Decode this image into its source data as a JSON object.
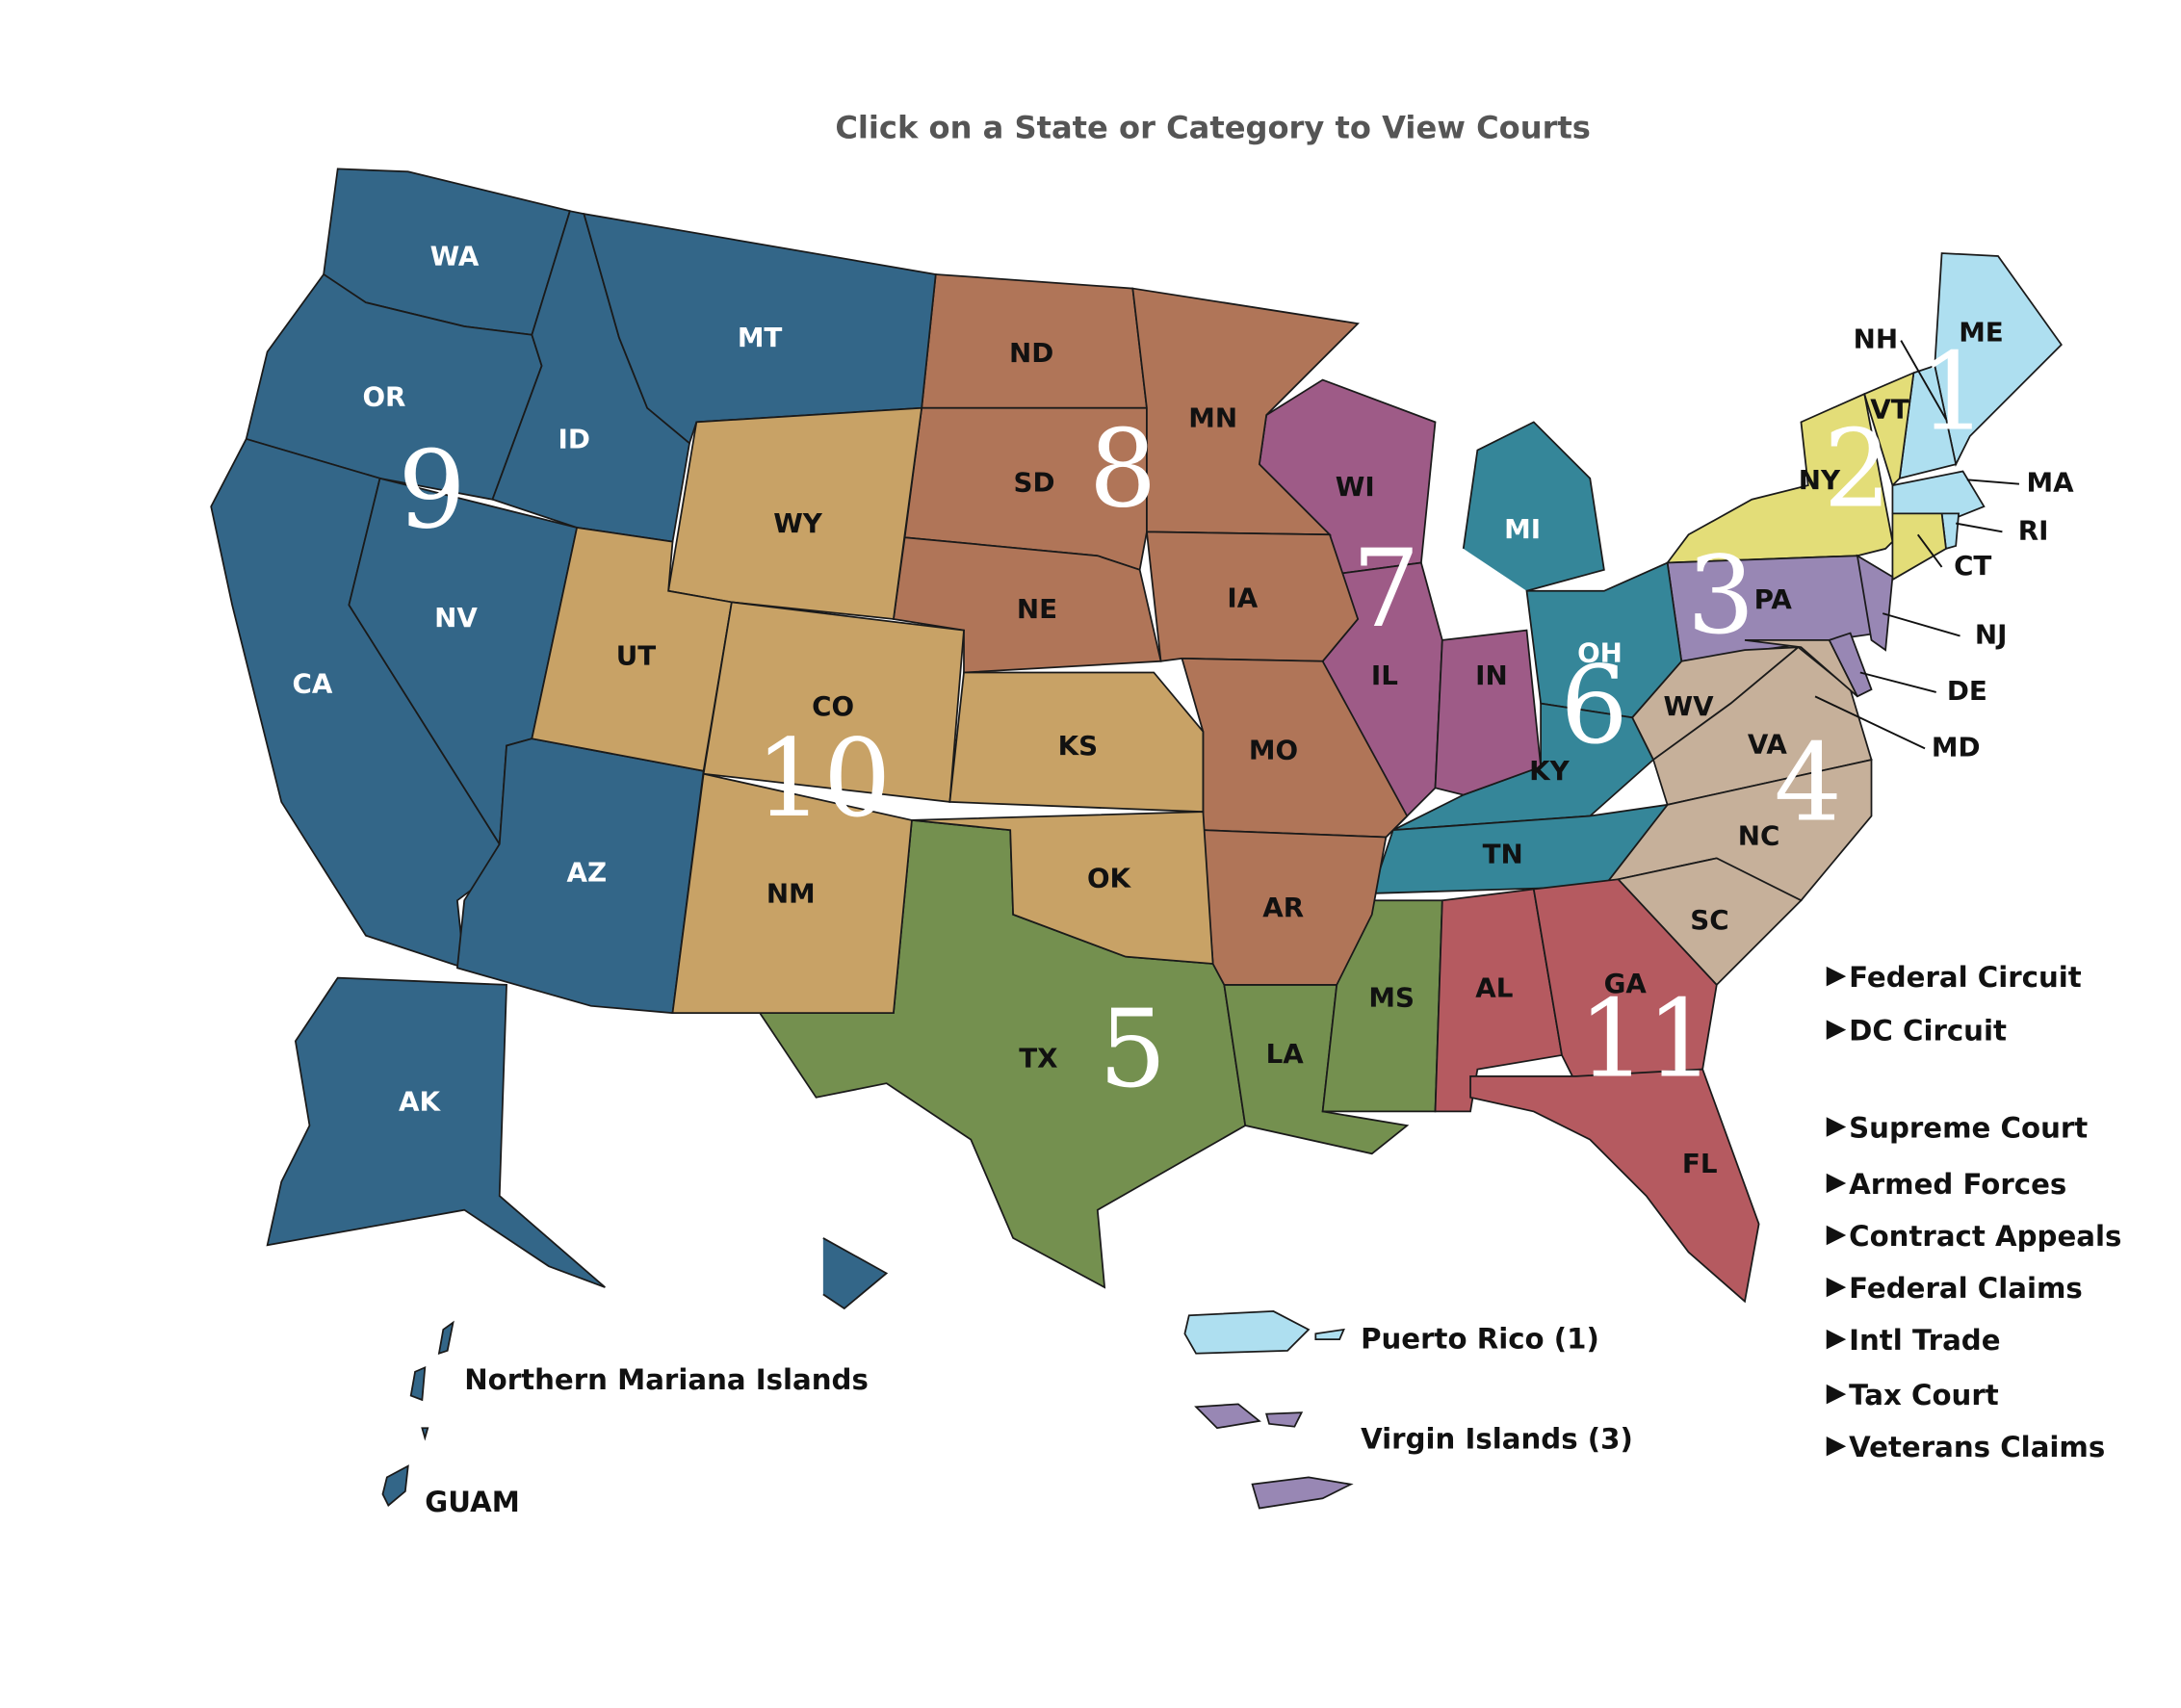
{
  "title": "Click on a State or Category to View Courts",
  "circuits": [
    {
      "number": 1,
      "color": "#aedff0",
      "states": [
        "ME",
        "NH",
        "MA",
        "RI"
      ]
    },
    {
      "number": 2,
      "color": "#e3dd78",
      "states": [
        "NY",
        "VT",
        "CT"
      ]
    },
    {
      "number": 3,
      "color": "#9887b4",
      "states": [
        "PA",
        "NJ",
        "DE"
      ]
    },
    {
      "number": 4,
      "color": "#c6b09a",
      "states": [
        "WV",
        "VA",
        "NC",
        "SC",
        "MD"
      ]
    },
    {
      "number": 5,
      "color": "#74904f",
      "states": [
        "TX",
        "LA",
        "MS"
      ]
    },
    {
      "number": 6,
      "color": "#358699",
      "states": [
        "MI",
        "OH",
        "KY",
        "TN"
      ]
    },
    {
      "number": 7,
      "color": "#9e5b87",
      "states": [
        "WI",
        "IL",
        "IN"
      ]
    },
    {
      "number": 8,
      "color": "#b07558",
      "states": [
        "ND",
        "SD",
        "NE",
        "MN",
        "IA",
        "MO",
        "AR"
      ]
    },
    {
      "number": 9,
      "color": "#336688",
      "states": [
        "WA",
        "OR",
        "CA",
        "ID",
        "MT",
        "NV",
        "AZ",
        "AK",
        "HI"
      ]
    },
    {
      "number": 10,
      "color": "#c8a266",
      "states": [
        "WY",
        "UT",
        "CO",
        "KS",
        "NM",
        "OK"
      ]
    },
    {
      "number": 11,
      "color": "#b55a60",
      "states": [
        "AL",
        "GA",
        "FL"
      ]
    }
  ],
  "territories": [
    "Puerto Rico (1)",
    "Virgin Islands (3)",
    "Northern Mariana Islands",
    "GUAM"
  ],
  "categories": [
    "Federal Circuit",
    "DC Circuit",
    "Supreme Court",
    "Armed Forces",
    "Contract Appeals",
    "Federal Claims",
    "Intl Trade",
    "Tax Court",
    "Veterans Claims"
  ]
}
